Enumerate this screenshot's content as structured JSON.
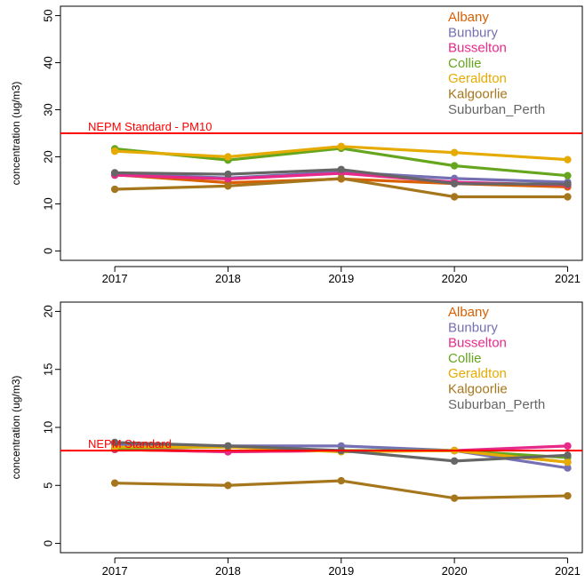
{
  "chart_data": [
    {
      "type": "line",
      "ylabel": "concentration (ug/m3)",
      "x": [
        2017,
        2018,
        2019,
        2020,
        2021
      ],
      "xtick_labels": [
        "2017",
        "2018",
        "2019",
        "2020",
        "2021"
      ],
      "yticks": [
        "0",
        "10",
        "20",
        "30",
        "40",
        "50"
      ],
      "ylim": [
        -2,
        52
      ],
      "xlim": [
        2016.52,
        2021.13
      ],
      "grid": false,
      "legend_placement": "top-right",
      "reference_line": {
        "label": "NEPM Standard - PM10",
        "value": 25,
        "color": "#ff0000"
      },
      "series": [
        {
          "name": "Albany",
          "color": "#d95f02",
          "values": [
            16.2,
            14.5,
            15.3,
            14.3,
            13.6
          ]
        },
        {
          "name": "Bunbury",
          "color": "#7570b3",
          "values": [
            16.4,
            15.5,
            16.8,
            15.4,
            14.6
          ]
        },
        {
          "name": "Busselton",
          "color": "#e7298a",
          "values": [
            16.1,
            15.3,
            16.5,
            14.6,
            14.0
          ]
        },
        {
          "name": "Collie",
          "color": "#66a61e",
          "values": [
            21.7,
            19.3,
            21.8,
            18.1,
            16.0
          ]
        },
        {
          "name": "Geraldton",
          "color": "#e6ab02",
          "values": [
            21.2,
            20.0,
            22.2,
            20.9,
            19.4
          ]
        },
        {
          "name": "Kalgoorlie",
          "color": "#a6761d",
          "values": [
            13.1,
            13.8,
            15.4,
            11.5,
            11.5
          ]
        },
        {
          "name": "Suburban_Perth",
          "color": "#666666",
          "values": [
            16.6,
            16.3,
            17.3,
            14.3,
            14.2
          ]
        }
      ]
    },
    {
      "type": "line",
      "ylabel": "concentration (ug/m3)",
      "x": [
        2017,
        2018,
        2019,
        2020,
        2021
      ],
      "xtick_labels": [
        "2017",
        "2018",
        "2019",
        "2020",
        "2021"
      ],
      "yticks": [
        "0",
        "5",
        "10",
        "15",
        "20"
      ],
      "ylim": [
        -0.8,
        20.8
      ],
      "xlim": [
        2016.52,
        2021.13
      ],
      "grid": false,
      "legend_placement": "top-right",
      "reference_line": {
        "label": "NEPM Standard",
        "value": 8,
        "color": "#ff0000"
      },
      "series": [
        {
          "name": "Albany",
          "color": "#d95f02",
          "values": [
            8.1,
            7.9,
            8.0,
            8.0,
            7.0
          ]
        },
        {
          "name": "Bunbury",
          "color": "#7570b3",
          "values": [
            8.5,
            8.4,
            8.4,
            8.0,
            6.5
          ]
        },
        {
          "name": "Busselton",
          "color": "#e7298a",
          "values": [
            8.1,
            7.9,
            8.0,
            8.0,
            8.4
          ]
        },
        {
          "name": "Collie",
          "color": "#66a61e",
          "values": [
            8.2,
            8.3,
            8.0,
            8.0,
            7.4
          ]
        },
        {
          "name": "Geraldton",
          "color": "#e6ab02",
          "values": [
            8.3,
            8.3,
            7.9,
            8.0,
            7.0
          ]
        },
        {
          "name": "Kalgoorlie",
          "color": "#a6761d",
          "values": [
            5.2,
            5.0,
            5.4,
            3.9,
            4.1
          ]
        },
        {
          "name": "Suburban_Perth",
          "color": "#666666",
          "values": [
            8.7,
            8.4,
            8.0,
            7.1,
            7.6
          ]
        }
      ]
    }
  ]
}
